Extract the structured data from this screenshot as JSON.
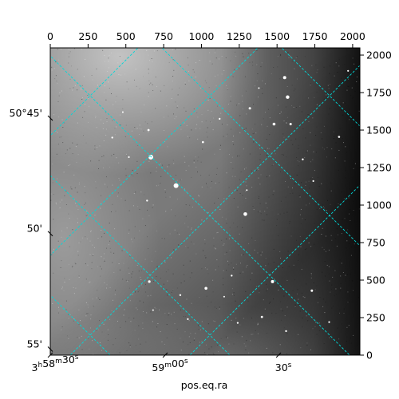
{
  "chart_data": {
    "type": "image",
    "colormap": "gray",
    "grid": true,
    "grid_color": "#00d8d8",
    "frame_color": "#000000",
    "xlabel": "pos.eq.ra",
    "ylabel": "",
    "title": "",
    "pixel_axes": {
      "x_top": {
        "range": [
          0,
          2048
        ],
        "ticks": [
          0,
          250,
          500,
          750,
          1000,
          1250,
          1500,
          1750,
          2000
        ]
      },
      "y_right": {
        "range": [
          0,
          2048
        ],
        "ticks": [
          0,
          250,
          500,
          750,
          1000,
          1250,
          1500,
          1750,
          2000
        ]
      }
    },
    "world_axes": {
      "ra_bottom": [
        {
          "h": "3",
          "m": "58",
          "s": "30",
          "x_pix": 0
        },
        {
          "h": "",
          "m": "59",
          "s": "00",
          "x_pix": 760
        },
        {
          "h": "",
          "m": "",
          "s": "30",
          "x_pix": 1510
        }
      ],
      "dec_left": [
        {
          "label": "50°45'",
          "y_pix": 1580
        },
        {
          "label": "50'",
          "y_pix": 810
        },
        {
          "label": "55'",
          "y_pix": 40
        }
      ]
    },
    "sources": [
      {
        "x": 1550,
        "y": 1850,
        "r": 2
      },
      {
        "x": 1570,
        "y": 1720,
        "r": 2.2
      },
      {
        "x": 1320,
        "y": 1645,
        "r": 1.5
      },
      {
        "x": 1480,
        "y": 1540,
        "r": 1.8
      },
      {
        "x": 1590,
        "y": 1540,
        "r": 1.5
      },
      {
        "x": 1120,
        "y": 1575,
        "r": 1.2
      },
      {
        "x": 1010,
        "y": 1420,
        "r": 1.3
      },
      {
        "x": 1910,
        "y": 1455,
        "r": 1.3
      },
      {
        "x": 1670,
        "y": 1305,
        "r": 1.2
      },
      {
        "x": 1970,
        "y": 1895,
        "r": 1.1
      },
      {
        "x": 665,
        "y": 1320,
        "r": 3
      },
      {
        "x": 832,
        "y": 1130,
        "r": 3
      },
      {
        "x": 1290,
        "y": 940,
        "r": 2.3
      },
      {
        "x": 650,
        "y": 1500,
        "r": 1.4
      },
      {
        "x": 410,
        "y": 1450,
        "r": 1.2
      },
      {
        "x": 520,
        "y": 1320,
        "r": 1.1
      },
      {
        "x": 640,
        "y": 1030,
        "r": 1.2
      },
      {
        "x": 1470,
        "y": 490,
        "r": 2
      },
      {
        "x": 1030,
        "y": 445,
        "r": 1.8
      },
      {
        "x": 655,
        "y": 490,
        "r": 1.6
      },
      {
        "x": 1200,
        "y": 530,
        "r": 1.2
      },
      {
        "x": 1730,
        "y": 430,
        "r": 1.5
      },
      {
        "x": 860,
        "y": 400,
        "r": 1.2
      },
      {
        "x": 1400,
        "y": 255,
        "r": 1.4
      },
      {
        "x": 1560,
        "y": 160,
        "r": 1.2
      },
      {
        "x": 1845,
        "y": 220,
        "r": 1.1
      },
      {
        "x": 1240,
        "y": 215,
        "r": 1.1
      },
      {
        "x": 910,
        "y": 240,
        "r": 1.1
      },
      {
        "x": 680,
        "y": 300,
        "r": 1
      },
      {
        "x": 1150,
        "y": 390,
        "r": 1
      },
      {
        "x": 1740,
        "y": 1160,
        "r": 1.1
      },
      {
        "x": 1300,
        "y": 1100,
        "r": 1
      },
      {
        "x": 480,
        "y": 1620,
        "r": 1
      },
      {
        "x": 1380,
        "y": 1780,
        "r": 1
      }
    ]
  }
}
